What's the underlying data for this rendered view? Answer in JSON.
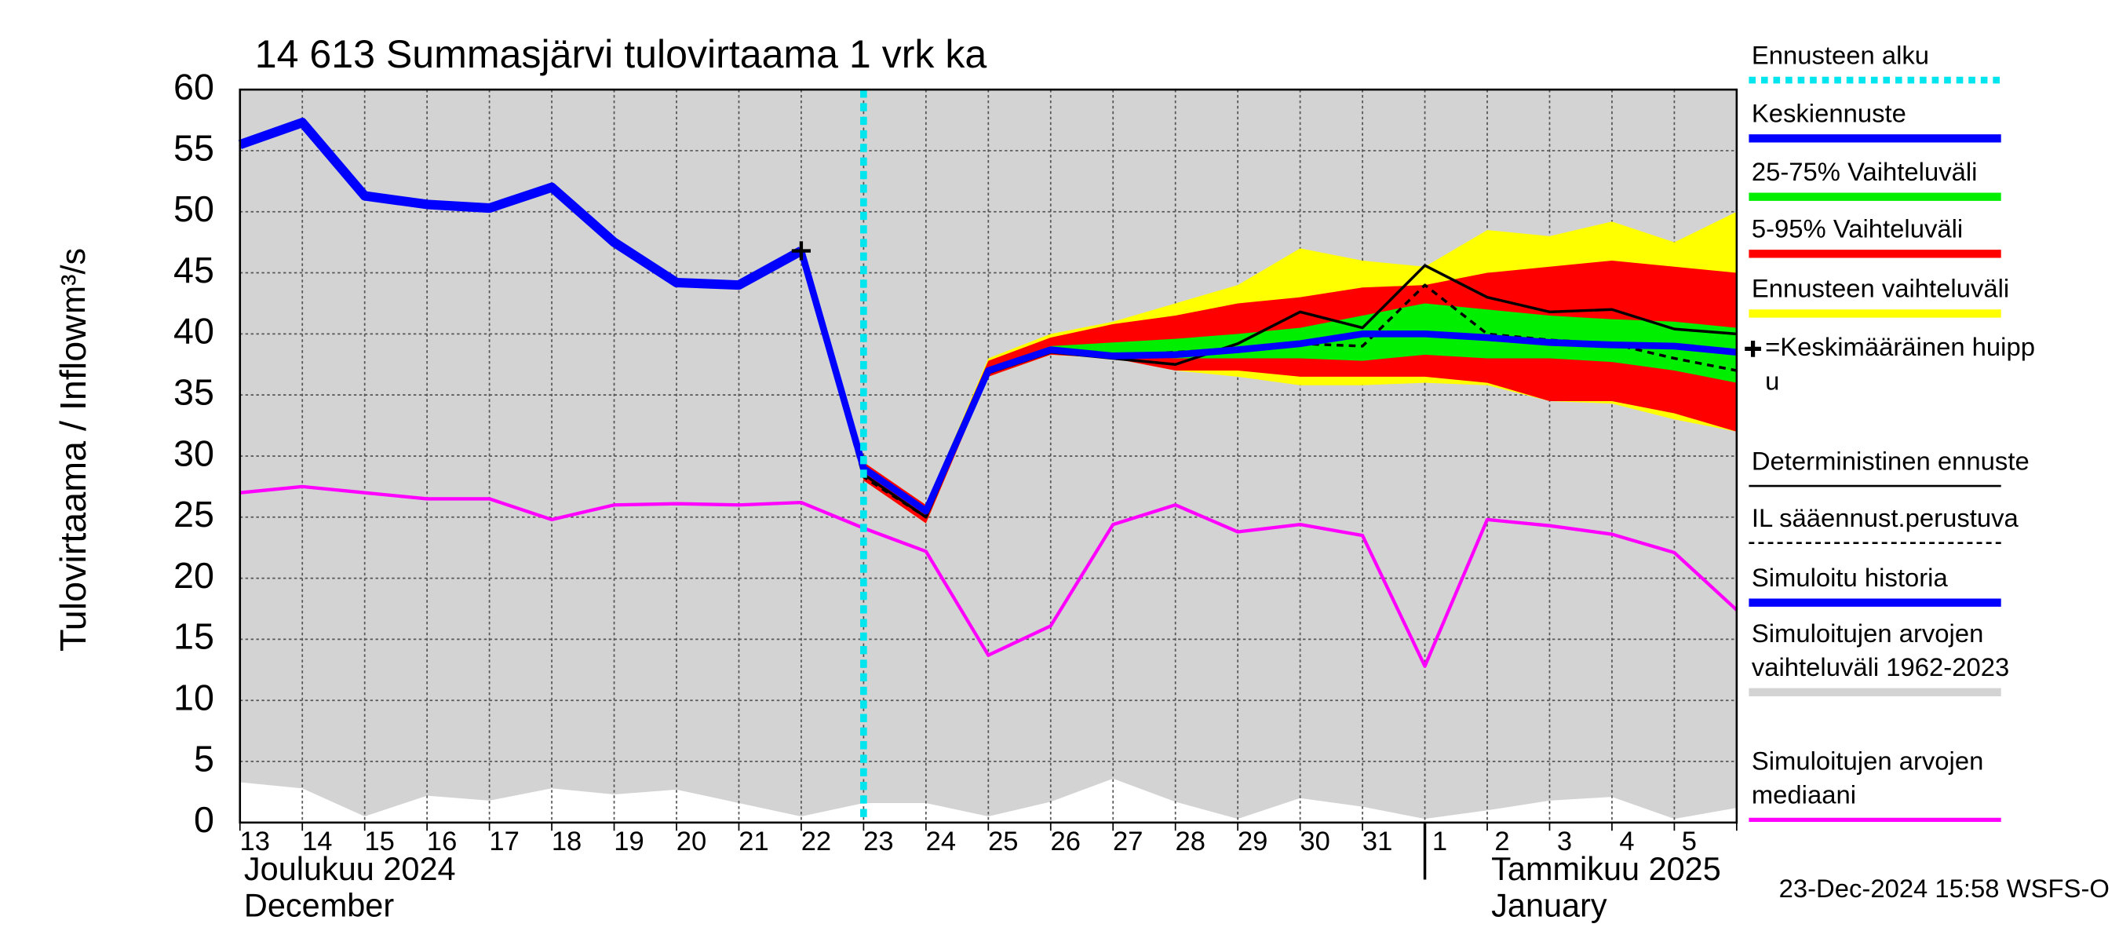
{
  "chart_data": {
    "type": "hydrograph",
    "title": "14 613 Summasjärvi tulovirtaama 1 vrk ka",
    "y_label": "Tulovirtaama / Inflow",
    "y_unit": "m³/s",
    "categories": [
      "13",
      "14",
      "15",
      "16",
      "17",
      "18",
      "19",
      "20",
      "21",
      "22",
      "23",
      "24",
      "25",
      "26",
      "27",
      "28",
      "29",
      "30",
      "31",
      "1",
      "2",
      "3",
      "4",
      "5",
      null
    ],
    "months": [
      {
        "at": 0,
        "lines": [
          "Joulukuu  2024",
          "December"
        ]
      },
      {
        "at": 19,
        "lines": [
          "Tammikuu  2025",
          "January"
        ]
      }
    ],
    "ylim": [
      0,
      60
    ],
    "yticks": [
      0,
      5,
      10,
      15,
      20,
      25,
      30,
      35,
      40,
      45,
      50,
      55,
      60
    ],
    "grid": true,
    "forecast_start": 10,
    "bands": [
      {
        "color": "#d3d3d3",
        "low": [
          3.3,
          2.8,
          0.5,
          2.2,
          1.8,
          2.8,
          2.3,
          2.7,
          1.6,
          0.5,
          1.6,
          1.6,
          0.5,
          1.7,
          3.6,
          1.7,
          0.3,
          2,
          1.3,
          0.3,
          1,
          1.8,
          2.1,
          0.3,
          1.2
        ],
        "high": [
          60,
          60,
          60,
          60,
          60,
          60,
          60,
          60,
          60,
          60,
          60,
          60,
          60,
          60,
          60,
          60,
          60,
          60,
          60,
          60,
          60,
          60,
          60,
          60,
          60
        ]
      },
      {
        "color": "#ffff00",
        "low": [
          null,
          null,
          null,
          null,
          null,
          null,
          null,
          null,
          null,
          46.8,
          28,
          24.5,
          36.5,
          38.3,
          38,
          37,
          36.5,
          35.8,
          35.8,
          36,
          35.8,
          34.5,
          34.3,
          33,
          32
        ],
        "high": [
          null,
          null,
          null,
          null,
          null,
          null,
          null,
          null,
          null,
          46.8,
          29.5,
          26,
          38,
          40,
          41,
          42.5,
          44,
          47,
          46,
          45.5,
          48.5,
          48,
          49.2,
          47.5,
          50
        ]
      },
      {
        "color": "#ff0000",
        "low": [
          null,
          null,
          null,
          null,
          null,
          null,
          null,
          null,
          null,
          46.8,
          28,
          24.5,
          36.5,
          38.3,
          38,
          37,
          37,
          36.5,
          36.5,
          36.5,
          36,
          34.5,
          34.5,
          33.5,
          32
        ],
        "high": [
          null,
          null,
          null,
          null,
          null,
          null,
          null,
          null,
          null,
          46.8,
          29.5,
          26,
          37.8,
          39.7,
          40.8,
          41.5,
          42.5,
          43,
          43.8,
          44,
          45,
          45.5,
          46,
          45.5,
          45
        ]
      },
      {
        "color": "#00ee00",
        "low": [
          null,
          null,
          null,
          null,
          null,
          null,
          null,
          null,
          null,
          46.8,
          28.7,
          25.3,
          37,
          38.5,
          38.3,
          38,
          38,
          38,
          37.8,
          38.3,
          38,
          38,
          37.7,
          37,
          36
        ],
        "high": [
          null,
          null,
          null,
          null,
          null,
          null,
          null,
          null,
          null,
          46.8,
          29,
          25.8,
          37.2,
          39,
          39.3,
          39.6,
          40,
          40.5,
          41.5,
          42.5,
          42,
          41.5,
          41.2,
          41,
          40.5
        ]
      }
    ],
    "series": [
      {
        "color": "#ff00ff",
        "width": 2.5,
        "values": [
          27,
          27.5,
          27,
          26.5,
          26.5,
          24.8,
          26,
          26.1,
          26,
          26.2,
          24.1,
          22.2,
          13.7,
          16.1,
          24.4,
          26,
          23.8,
          24.4,
          23.5,
          12.8,
          24.8,
          24.3,
          23.6,
          22.1,
          17.4
        ]
      },
      {
        "color": "#000000",
        "width": 2,
        "dash": "5,4",
        "values": [
          null,
          null,
          null,
          null,
          null,
          null,
          null,
          null,
          null,
          46.8,
          28.3,
          25,
          36.8,
          38.5,
          38.2,
          38.5,
          38.8,
          39.2,
          39,
          44,
          40,
          39.5,
          39.2,
          38,
          37
        ]
      },
      {
        "color": "#000000",
        "width": 2,
        "values": [
          null,
          null,
          null,
          null,
          null,
          null,
          null,
          null,
          null,
          46.8,
          28.5,
          25,
          36.8,
          38.5,
          38,
          37.5,
          39.2,
          41.8,
          40.5,
          45.6,
          43,
          41.8,
          42,
          40.4,
          40
        ]
      },
      {
        "color": "#0000ff",
        "width": 7,
        "values": [
          55.5,
          57.3,
          51.3,
          50.6,
          50.3,
          52,
          47.5,
          44.2,
          44,
          46.8,
          null,
          null,
          null,
          null,
          null,
          null,
          null,
          null,
          null,
          null,
          null,
          null,
          null,
          null,
          null
        ]
      },
      {
        "color": "#0000ff",
        "width": 5,
        "values": [
          null,
          null,
          null,
          null,
          null,
          null,
          null,
          null,
          null,
          46.8,
          29,
          25.5,
          37,
          38.7,
          38.2,
          38.3,
          38.7,
          39.2,
          40,
          40,
          39.7,
          39.3,
          39.1,
          39,
          38.5
        ]
      }
    ],
    "peak": {
      "at": 9,
      "value": 46.8
    },
    "legend": [
      {
        "lines": [
          "Ennusteen alku"
        ],
        "color": "#00e5ee",
        "style": "dot"
      },
      {
        "lines": [
          "Keskiennuste"
        ],
        "color": "#0000ff",
        "style": "thick"
      },
      {
        "lines": [
          "25-75% Vaihteluväli"
        ],
        "color": "#00ee00",
        "style": "thick"
      },
      {
        "lines": [
          "5-95% Vaihteluväli"
        ],
        "color": "#ff0000",
        "style": "thick"
      },
      {
        "lines": [
          "Ennusteen vaihteluväli"
        ],
        "color": "#ffff00",
        "style": "thick"
      },
      {
        "lines": [
          "=Keskimääräinen huipp",
          "u"
        ],
        "color": "#000000",
        "style": "plus"
      },
      {
        "lines": [
          "Deterministinen ennuste"
        ],
        "color": "#000000",
        "style": "thin"
      },
      {
        "lines": [
          "IL sääennust.perustuva"
        ],
        "color": "#000000",
        "style": "dash"
      },
      {
        "lines": [
          "Simuloitu historia"
        ],
        "color": "#0000ff",
        "style": "thick"
      },
      {
        "lines": [
          "Simuloitujen arvojen",
          "vaihteluväli 1962-2023"
        ],
        "color": "#d3d3d3",
        "style": "thick"
      },
      {
        "lines": [
          "Simuloitujen arvojen",
          "mediaani"
        ],
        "color": "#ff00ff",
        "style": "mid"
      }
    ],
    "timestamp": "23-Dec-2024 15:58 WSFS-O"
  }
}
